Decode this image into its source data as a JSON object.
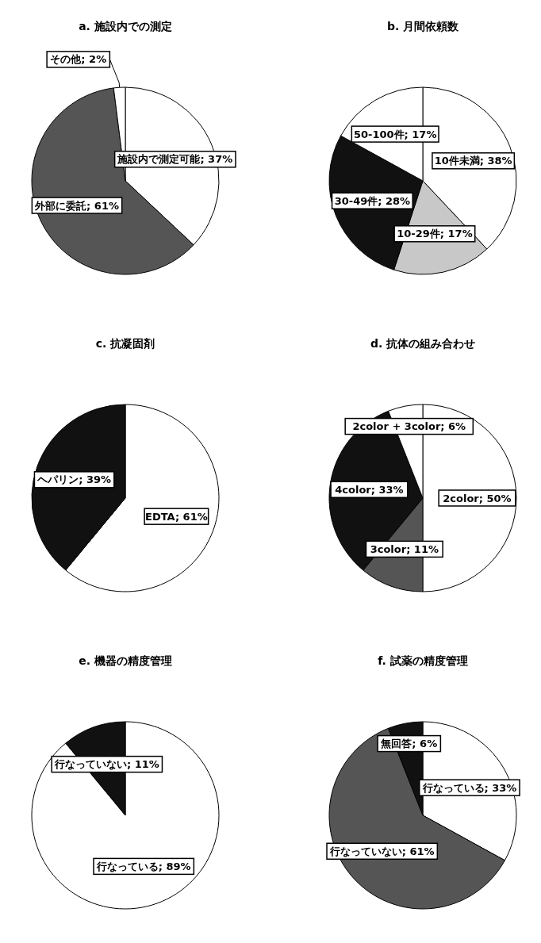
{
  "chart_data": [
    {
      "type": "pie",
      "title": "a. 施設内での測定",
      "categories": [
        "施設内で測定可能",
        "外部に委託",
        "その他"
      ],
      "values": [
        37,
        61,
        2
      ],
      "value_labels": [
        "37%",
        "61%",
        "2%"
      ],
      "colors": [
        "#ffffff",
        "#555555",
        "#ffffff"
      ]
    },
    {
      "type": "pie",
      "title": "b. 月間依頼数",
      "categories": [
        "10件未満",
        "10-29件",
        "30-49件",
        "50-100件"
      ],
      "values": [
        38,
        17,
        28,
        17
      ],
      "value_labels": [
        "38%",
        "17%",
        "28%",
        "17%"
      ],
      "colors": [
        "#ffffff",
        "#c8c8c8",
        "#111111",
        "#ffffff"
      ]
    },
    {
      "type": "pie",
      "title": "c. 抗凝固剤",
      "categories": [
        "EDTA",
        "ヘパリン"
      ],
      "values": [
        61,
        39
      ],
      "value_labels": [
        "61%",
        "39%"
      ],
      "colors": [
        "#ffffff",
        "#111111"
      ]
    },
    {
      "type": "pie",
      "title": "d. 抗体の組み合わせ",
      "categories": [
        "2color",
        "3color",
        "4color",
        "2color + 3color"
      ],
      "values": [
        50,
        11,
        33,
        6
      ],
      "value_labels": [
        "50%",
        "11%",
        "33%",
        "6%"
      ],
      "colors": [
        "#ffffff",
        "#555555",
        "#111111",
        "#ffffff"
      ]
    },
    {
      "type": "pie",
      "title": "e. 機器の精度管理",
      "categories": [
        "行なっている",
        "行なっていない"
      ],
      "values": [
        89,
        11
      ],
      "value_labels": [
        "89%",
        "11%"
      ],
      "colors": [
        "#ffffff",
        "#111111"
      ]
    },
    {
      "type": "pie",
      "title": "f. 試薬の精度管理",
      "categories": [
        "行なっている",
        "行なっていない",
        "無回答"
      ],
      "values": [
        33,
        61,
        6
      ],
      "value_labels": [
        "33%",
        "61%",
        "6%"
      ],
      "colors": [
        "#ffffff",
        "#555555",
        "#111111"
      ]
    }
  ]
}
